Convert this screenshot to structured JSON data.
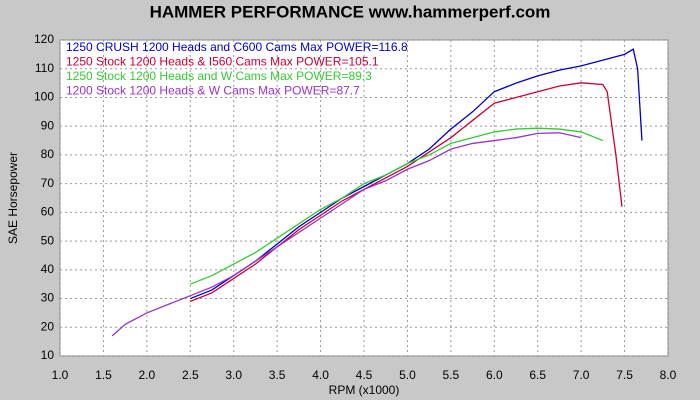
{
  "chart_data": {
    "type": "line",
    "title": "HAMMER PERFORMANCE www.hammerperf.com",
    "x_label": "RPM (x1000)",
    "y_label": "SAE Horsepower",
    "xlim": [
      1,
      8
    ],
    "ylim": [
      10,
      120
    ],
    "xticks": [
      {
        "value": 1,
        "label": "1.0"
      },
      {
        "value": 1.5,
        "label": "1.5"
      },
      {
        "value": 2,
        "label": "2.0"
      },
      {
        "value": 2.5,
        "label": "2.5"
      },
      {
        "value": 3,
        "label": "3.0"
      },
      {
        "value": 3.5,
        "label": "3.5"
      },
      {
        "value": 4,
        "label": "4.0"
      },
      {
        "value": 4.5,
        "label": "4.5"
      },
      {
        "value": 5,
        "label": "5.0"
      },
      {
        "value": 5.5,
        "label": "5.5"
      },
      {
        "value": 6,
        "label": "6.0"
      },
      {
        "value": 6.5,
        "label": "6.5"
      },
      {
        "value": 7,
        "label": "7.0"
      },
      {
        "value": 7.5,
        "label": "7.5"
      },
      {
        "value": 8,
        "label": "8.0"
      }
    ],
    "yticks": [
      10,
      20,
      30,
      40,
      50,
      60,
      70,
      80,
      90,
      100,
      110,
      120
    ],
    "grid": true,
    "legend": "upper left",
    "series": [
      {
        "name": "1250 CRUSH 1200 Heads and C600 Cams  Max POWER=116.8",
        "color": "#0000cc",
        "x": [
          2.5,
          2.75,
          3,
          3.25,
          3.5,
          3.75,
          4,
          4.25,
          4.5,
          4.75,
          5,
          5.25,
          5.5,
          5.75,
          6,
          6.25,
          6.5,
          6.75,
          7,
          7.25,
          7.5,
          7.6,
          7.65,
          7.7
        ],
        "values": [
          30,
          33,
          38,
          43,
          49,
          55,
          60,
          65,
          69,
          73,
          77,
          82,
          89,
          95,
          102,
          105,
          107.5,
          109.5,
          111,
          113,
          115,
          116.8,
          110,
          85
        ]
      },
      {
        "name": "1250 Stock 1200 Heads & I560 Cams  Max POWER=105.1",
        "color": "#cc0033",
        "x": [
          2.5,
          2.75,
          3,
          3.25,
          3.5,
          3.75,
          4,
          4.25,
          4.5,
          4.75,
          5,
          5.25,
          5.5,
          5.75,
          6,
          6.25,
          6.5,
          6.75,
          7,
          7.25,
          7.3,
          7.4,
          7.47
        ],
        "values": [
          29,
          32,
          37,
          42,
          48,
          54,
          59,
          64,
          68,
          72,
          76,
          81,
          86,
          92,
          98,
          100,
          102,
          104,
          105.1,
          104.5,
          102,
          80,
          62
        ]
      },
      {
        "name": "1250 Stock 1200 Heads and W Cams  Max POWER=89.3",
        "color": "#33cc33",
        "x": [
          2.5,
          2.75,
          3,
          3.25,
          3.5,
          3.75,
          4,
          4.25,
          4.5,
          4.75,
          5,
          5.25,
          5.5,
          5.75,
          6,
          6.25,
          6.5,
          6.75,
          7,
          7.25
        ],
        "values": [
          35,
          38,
          42,
          46,
          51,
          56,
          61,
          65,
          70,
          73,
          77,
          80,
          84,
          86,
          88,
          89,
          89.3,
          89,
          88,
          85
        ]
      },
      {
        "name": "1200 Stock 1200 Heads & W Cams  Max POWER=87.7",
        "color": "#9933cc",
        "x": [
          1.6,
          1.75,
          2,
          2.25,
          2.5,
          2.75,
          3,
          3.25,
          3.5,
          3.75,
          4,
          4.25,
          4.5,
          4.75,
          5,
          5.25,
          5.5,
          5.75,
          6,
          6.25,
          6.5,
          6.75,
          7
        ],
        "values": [
          17,
          21,
          25,
          28,
          31,
          34,
          38,
          43,
          48,
          53,
          58,
          63,
          68,
          71,
          75,
          78,
          82,
          84,
          85,
          86,
          87.5,
          87.7,
          86
        ]
      }
    ]
  }
}
